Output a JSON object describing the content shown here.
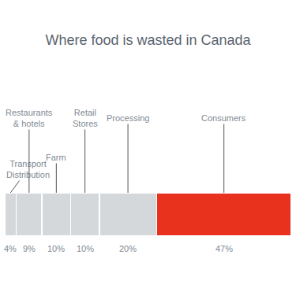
{
  "chart_data": {
    "type": "bar",
    "orientation": "horizontal",
    "stacked": true,
    "title": "Where food is wasted in Canada",
    "categories": [
      "Transport\nDistribution",
      "Restaurants\n& hotels",
      "Farm",
      "Retail\nStores",
      "Processing",
      "Consumers"
    ],
    "values": [
      4,
      9,
      10,
      10,
      20,
      47
    ],
    "value_labels": [
      "4%",
      "9%",
      "10%",
      "10%",
      "20%",
      "47%"
    ],
    "colors": [
      "#d5d8db",
      "#d5d8db",
      "#d5d8db",
      "#d5d8db",
      "#d5d8db",
      "#e8321e"
    ],
    "xlim": [
      0,
      100
    ],
    "data_labels": true,
    "tick_labels": false
  }
}
